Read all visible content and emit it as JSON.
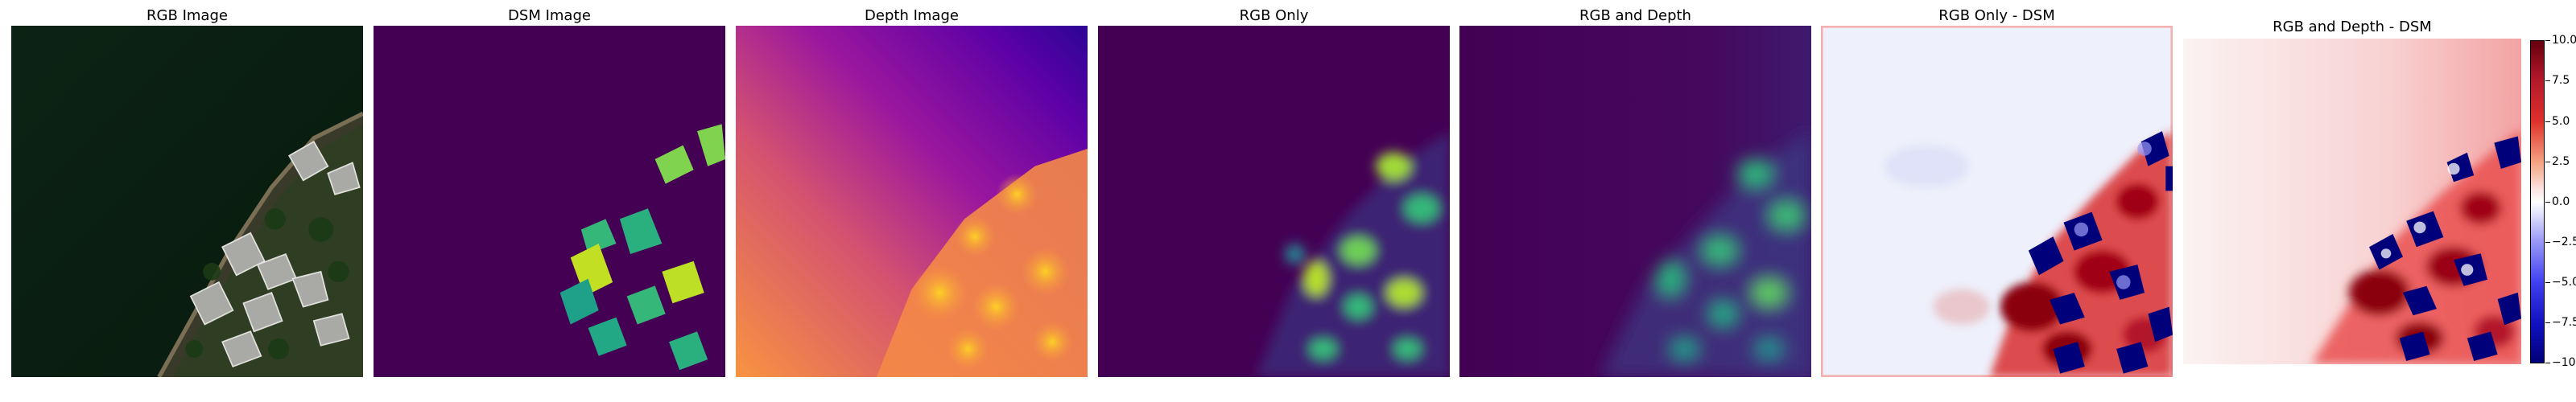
{
  "panels": [
    {
      "title": "RGB Image"
    },
    {
      "title": "DSM Image"
    },
    {
      "title": "Depth Image"
    },
    {
      "title": "RGB Only"
    },
    {
      "title": "RGB and Depth"
    },
    {
      "title": "RGB Only - DSM"
    },
    {
      "title": "RGB and Depth - DSM"
    }
  ],
  "colorbar": {
    "min": -10.0,
    "max": 10.0,
    "ticks": [
      "10.0",
      "7.5",
      "5.0",
      "2.5",
      "0.0",
      "−2.5",
      "−5.0",
      "−7.5",
      "−10.0"
    ],
    "colormap": "seismic"
  },
  "colors": {
    "viridis_low": "#440154",
    "viridis_high": "#fde725",
    "plasma_low": "#0d0887",
    "plasma_high": "#f0f921",
    "diff_positive": "#b2182b",
    "diff_negative": "#00007a"
  }
}
